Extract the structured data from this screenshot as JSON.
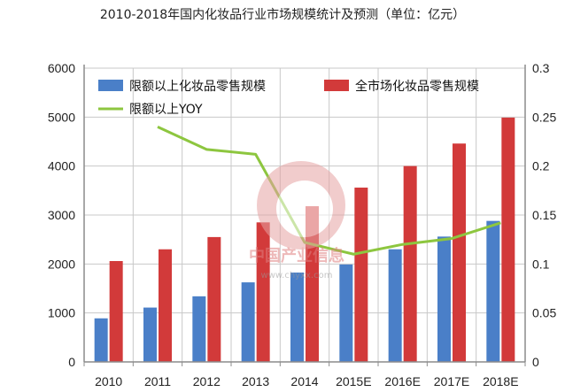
{
  "page": {
    "title": "2010-2018年国内化妆品行业市场规模统计及预测（单位：亿元）"
  },
  "watermark": {
    "name": "中国产业信息",
    "url": "www.chyxx.com"
  },
  "colors": {
    "series1": "#4a7fc8",
    "series2": "#d23a3a",
    "line": "#8dc63f",
    "axis": "#8c8c8c",
    "grid": "#c8c8c8"
  },
  "chart_data": {
    "type": "bar",
    "title": "2010-2018年国内化妆品行业市场规模统计及预测（单位：亿元）",
    "categories": [
      "2010",
      "2011",
      "2012",
      "2013",
      "2014",
      "2015E",
      "2016E",
      "2017E",
      "2018E"
    ],
    "series": [
      {
        "name": "限额以上化妆品零售规模",
        "type": "bar",
        "axis": "left",
        "values": [
          890,
          1110,
          1340,
          1625,
          1825,
          1990,
          2300,
          2560,
          2880
        ]
      },
      {
        "name": "全市场化妆品零售规模",
        "type": "bar",
        "axis": "left",
        "values": [
          2060,
          2300,
          2550,
          2850,
          3180,
          3560,
          4000,
          4460,
          4990
        ]
      },
      {
        "name": "限额以上YOY",
        "type": "line",
        "axis": "right",
        "values": [
          null,
          0.24,
          0.217,
          0.212,
          0.122,
          0.11,
          0.12,
          0.126,
          0.142
        ]
      }
    ],
    "ylim": [
      0,
      6000
    ],
    "yticks": [
      "0",
      "1000",
      "2000",
      "3000",
      "4000",
      "5000",
      "6000"
    ],
    "y2lim": [
      0,
      0.3
    ],
    "y2ticks": [
      "0",
      "0.05",
      "0.1",
      "0.15",
      "0.2",
      "0.25",
      "0.3"
    ],
    "grid": true,
    "legend": "top"
  }
}
